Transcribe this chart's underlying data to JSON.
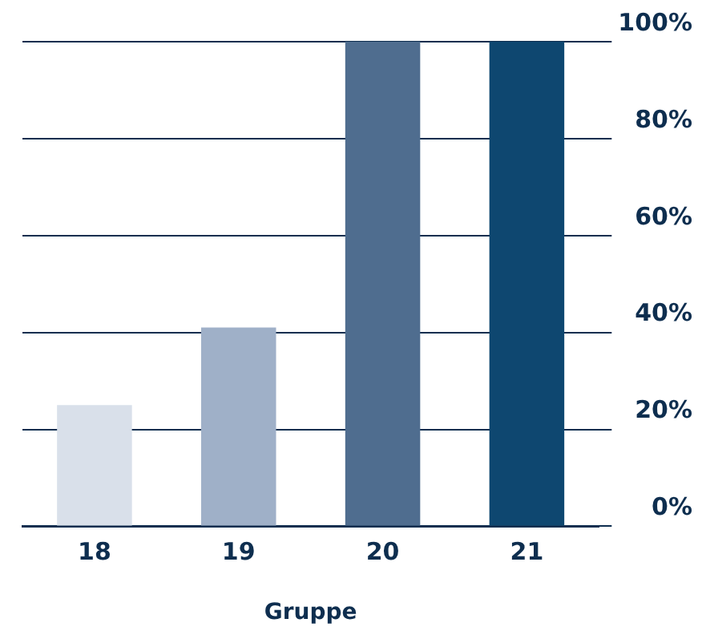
{
  "chart_data": {
    "type": "bar",
    "xlabel": "Gruppe",
    "categories": [
      "18",
      "19",
      "20",
      "21"
    ],
    "values": [
      25,
      41,
      100,
      100
    ],
    "colors": [
      "#d9e0ea",
      "#9fb0c8",
      "#4f6d8f",
      "#0e4770"
    ],
    "ylim": [
      0,
      100
    ],
    "yticks": [
      {
        "value": 0,
        "label": "0%"
      },
      {
        "value": 20,
        "label": "20%"
      },
      {
        "value": 40,
        "label": "40%"
      },
      {
        "value": 60,
        "label": "60%"
      },
      {
        "value": 80,
        "label": "80%"
      },
      {
        "value": 100,
        "label": "100%"
      }
    ],
    "grid": "y",
    "legend": false
  }
}
